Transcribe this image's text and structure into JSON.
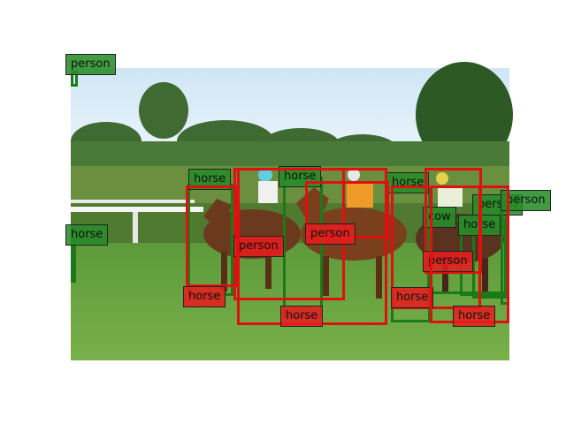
{
  "colors": {
    "red": "#e01010",
    "green": "#1a7a1a"
  },
  "detections": [
    {
      "label": "person",
      "color": "green"
    },
    {
      "label": "horse",
      "color": "green"
    },
    {
      "label": "horse",
      "color": "green"
    },
    {
      "label": "horse",
      "color": "green"
    },
    {
      "label": "person",
      "color": "green"
    },
    {
      "label": "cow",
      "color": "green"
    },
    {
      "label": "horse",
      "color": "green"
    },
    {
      "label": "horse",
      "color": "green"
    },
    {
      "label": "person",
      "color": "green"
    },
    {
      "label": "person",
      "color": "red"
    },
    {
      "label": "person",
      "color": "red"
    },
    {
      "label": "person",
      "color": "red"
    },
    {
      "label": "horse",
      "color": "red"
    },
    {
      "label": "horse",
      "color": "red"
    },
    {
      "label": "horse",
      "color": "red"
    },
    {
      "label": "horse",
      "color": "red"
    }
  ]
}
